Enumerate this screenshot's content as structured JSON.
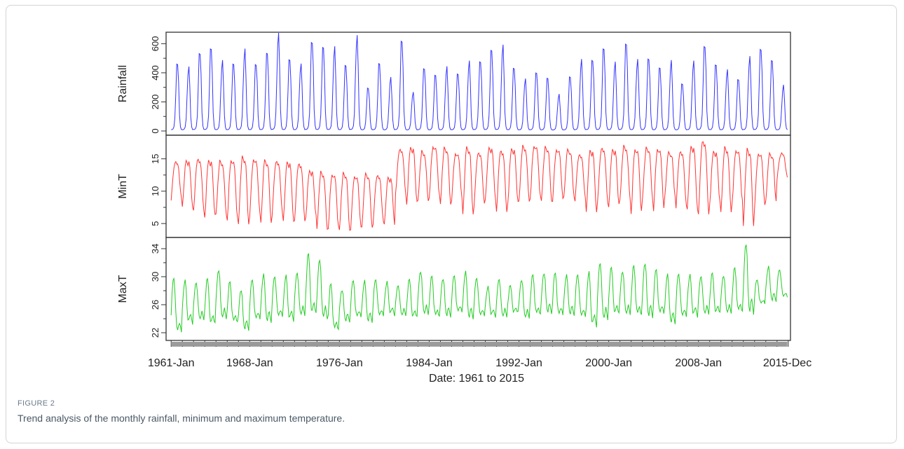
{
  "figure": {
    "label": "FIGURE 2",
    "caption": "Trend analysis of the monthly rainfall, minimum and maximum temperature."
  },
  "chart_data": {
    "type": "line",
    "xlabel": "Date: 1961 to 2015",
    "x_tick_labels": [
      "1961-Jan",
      "1968-Jan",
      "1976-Jan",
      "1984-Jan",
      "1992-Jan",
      "2000-Jan",
      "2008-Jan",
      "2015-Dec"
    ],
    "x_tick_years": [
      1961.0,
      1968.0,
      1976.0,
      1984.0,
      1992.0,
      2000.0,
      2008.0,
      2015.92
    ],
    "xlim": [
      "1961-Jan",
      "2015-Dec"
    ],
    "series_note": "monthly values, one row per panel",
    "panels": [
      {
        "ylabel": "Rainfall",
        "color": "#3333ff",
        "ylim": [
          0,
          650
        ],
        "yticks": [
          0,
          200,
          400,
          600
        ],
        "annual_peaks": [
          470,
          430,
          560,
          560,
          460,
          470,
          550,
          480,
          530,
          640,
          500,
          450,
          640,
          570,
          550,
          460,
          640,
          310,
          460,
          350,
          630,
          260,
          450,
          380,
          420,
          400,
          470,
          500,
          550,
          560,
          440,
          350,
          420,
          360,
          240,
          380,
          480,
          510,
          560,
          450,
          610,
          480,
          520,
          430,
          460,
          330,
          470,
          610,
          450,
          400,
          360,
          500,
          590,
          480,
          300
        ],
        "valley": 5
      },
      {
        "ylabel": "MinT",
        "color": "#ff3333",
        "ylim": [
          3.5,
          18
        ],
        "yticks": [
          5,
          10,
          15
        ],
        "annual": [
          [
            14.5,
            8.8
          ],
          [
            14.7,
            7.6
          ],
          [
            15.0,
            6.8
          ],
          [
            14.8,
            6.0
          ],
          [
            14.6,
            6.3
          ],
          [
            14.8,
            5.6
          ],
          [
            15.3,
            4.8
          ],
          [
            15.0,
            6.2
          ],
          [
            14.8,
            5.1
          ],
          [
            14.6,
            6.4
          ],
          [
            14.5,
            5.4
          ],
          [
            14.3,
            5.2
          ],
          [
            13.2,
            6.0
          ],
          [
            12.9,
            4.0
          ],
          [
            12.6,
            4.3
          ],
          [
            12.8,
            3.9
          ],
          [
            12.4,
            4.2
          ],
          [
            12.7,
            4.4
          ],
          [
            12.4,
            5.1
          ],
          [
            12.1,
            4.9
          ],
          [
            16.5,
            9.3
          ],
          [
            16.8,
            8.0
          ],
          [
            16.1,
            8.4
          ],
          [
            16.9,
            9.1
          ],
          [
            16.7,
            7.9
          ],
          [
            15.9,
            8.7
          ],
          [
            16.8,
            6.4
          ],
          [
            15.9,
            7.9
          ],
          [
            16.7,
            8.7
          ],
          [
            16.3,
            6.6
          ],
          [
            16.6,
            8.0
          ],
          [
            16.9,
            8.3
          ],
          [
            17.0,
            8.9
          ],
          [
            16.8,
            8.4
          ],
          [
            16.5,
            8.6
          ],
          [
            16.4,
            9.1
          ],
          [
            15.6,
            8.7
          ],
          [
            16.3,
            6.8
          ],
          [
            16.7,
            8.0
          ],
          [
            16.5,
            7.6
          ],
          [
            16.9,
            8.5
          ],
          [
            16.5,
            6.6
          ],
          [
            16.7,
            8.6
          ],
          [
            16.6,
            7.1
          ],
          [
            16.0,
            9.2
          ],
          [
            16.1,
            7.6
          ],
          [
            16.9,
            7.2
          ],
          [
            17.8,
            6.2
          ],
          [
            16.2,
            8.0
          ],
          [
            16.7,
            6.6
          ],
          [
            16.3,
            8.3
          ],
          [
            16.5,
            4.5
          ],
          [
            15.9,
            7.6
          ],
          [
            15.8,
            8.5
          ],
          [
            15.8,
            12.0
          ]
        ]
      },
      {
        "ylabel": "MaxT",
        "color": "#22cc22",
        "ylim": [
          21.5,
          35
        ],
        "yticks": [
          22,
          26,
          30,
          34
        ],
        "annual": [
          [
            29.8,
            22.0
          ],
          [
            29.4,
            23.4
          ],
          [
            29.2,
            23.8
          ],
          [
            29.6,
            23.2
          ],
          [
            31.0,
            24.0
          ],
          [
            29.2,
            23.4
          ],
          [
            28.2,
            22.4
          ],
          [
            29.5,
            23.8
          ],
          [
            30.2,
            23.6
          ],
          [
            30.0,
            24.2
          ],
          [
            30.1,
            23.8
          ],
          [
            30.6,
            24.4
          ],
          [
            33.2,
            24.6
          ],
          [
            32.5,
            24.0
          ],
          [
            28.9,
            22.3
          ],
          [
            28.2,
            23.6
          ],
          [
            29.4,
            24.1
          ],
          [
            29.3,
            23.6
          ],
          [
            29.6,
            24.3
          ],
          [
            29.2,
            24.6
          ],
          [
            28.8,
            24.4
          ],
          [
            29.5,
            24.1
          ],
          [
            30.8,
            24.6
          ],
          [
            30.0,
            24.2
          ],
          [
            29.8,
            24.3
          ],
          [
            30.1,
            24.8
          ],
          [
            30.6,
            24.1
          ],
          [
            29.8,
            24.3
          ],
          [
            28.5,
            24.4
          ],
          [
            29.7,
            24.2
          ],
          [
            28.6,
            24.8
          ],
          [
            29.6,
            24.1
          ],
          [
            30.2,
            24.5
          ],
          [
            30.6,
            24.8
          ],
          [
            30.5,
            24.4
          ],
          [
            30.1,
            24.6
          ],
          [
            30.3,
            24.2
          ],
          [
            30.6,
            23.0
          ],
          [
            32.0,
            23.8
          ],
          [
            31.2,
            24.6
          ],
          [
            30.8,
            24.6
          ],
          [
            31.5,
            24.4
          ],
          [
            32.0,
            24.2
          ],
          [
            31.0,
            24.6
          ],
          [
            30.2,
            23.4
          ],
          [
            30.4,
            24.2
          ],
          [
            30.2,
            24.4
          ],
          [
            30.1,
            24.6
          ],
          [
            30.4,
            24.7
          ],
          [
            30.2,
            24.8
          ],
          [
            31.2,
            24.9
          ],
          [
            34.8,
            24.7
          ],
          [
            29.5,
            26.0
          ],
          [
            31.3,
            26.6
          ],
          [
            31.0,
            27.0
          ]
        ]
      }
    ]
  }
}
